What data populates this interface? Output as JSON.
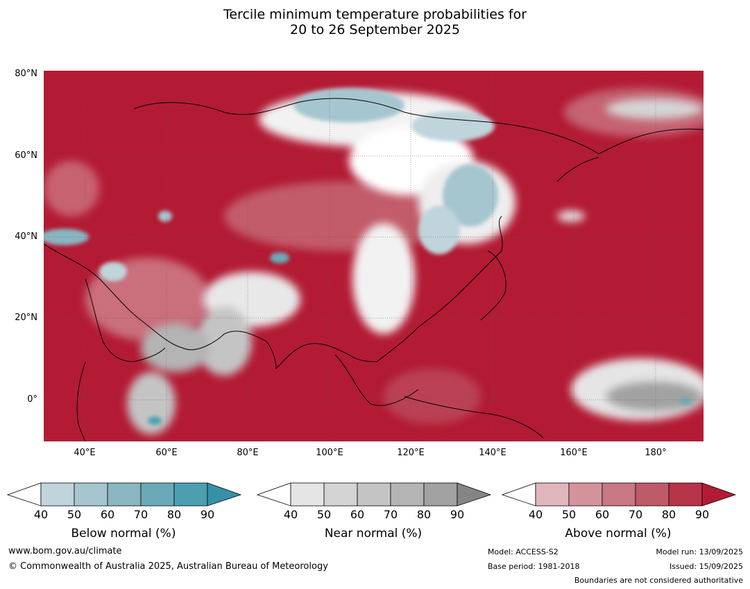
{
  "title_line1": "Tercile minimum temperature probabilities for",
  "title_line2": "20 to 26 September 2025",
  "map": {
    "lat_labels": [
      "80°N",
      "60°N",
      "40°N",
      "20°N",
      "0°"
    ],
    "lon_labels": [
      "40°E",
      "60°E",
      "80°E",
      "100°E",
      "120°E",
      "140°E",
      "160°E",
      "180°"
    ],
    "base_color": "#b31b34"
  },
  "legends": [
    {
      "label": "Below normal (%)",
      "ticks": [
        "40",
        "50",
        "60",
        "70",
        "80",
        "90"
      ],
      "colors": [
        "#ffffff",
        "#bfd4db",
        "#a6c6cf",
        "#89b6c1",
        "#6aaab8",
        "#4b9fb0",
        "#3690a8"
      ]
    },
    {
      "label": "Near normal (%)",
      "ticks": [
        "40",
        "50",
        "60",
        "70",
        "80",
        "90"
      ],
      "colors": [
        "#ffffff",
        "#e5e5e5",
        "#d4d4d4",
        "#c4c4c4",
        "#b4b4b4",
        "#a2a2a2",
        "#858585"
      ]
    },
    {
      "label": "Above normal (%)",
      "ticks": [
        "40",
        "50",
        "60",
        "70",
        "80",
        "90"
      ],
      "colors": [
        "#ffffff",
        "#e0b6bc",
        "#d4939b",
        "#c97782",
        "#bf5a69",
        "#b83449",
        "#b31b34"
      ]
    }
  ],
  "footer": {
    "url": "www.bom.gov.au/climate",
    "copyright": "© Commonwealth of Australia 2025, Australian Bureau of Meteorology",
    "model": "Model: ACCESS-S2",
    "base_period": "Base period: 1981-2018",
    "model_run": "Model run: 13/09/2025",
    "issued": "Issued: 15/09/2025",
    "disclaimer": "Boundaries are not considered authoritative"
  }
}
